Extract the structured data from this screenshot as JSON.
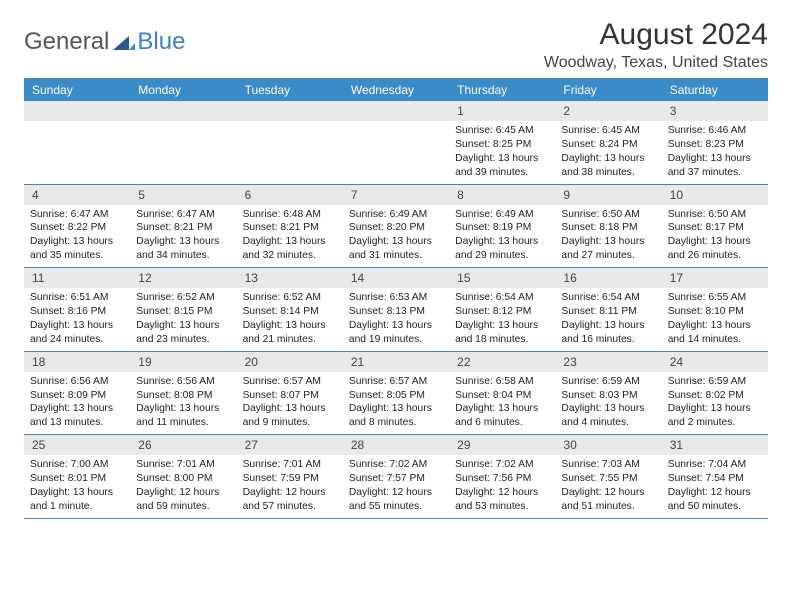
{
  "brand": {
    "part1": "General",
    "part2": "Blue"
  },
  "colors": {
    "header_bg": "#3b8bc9",
    "daynum_bg": "#e8e9ea",
    "border": "#5a7fa3",
    "logo_gray": "#555555",
    "logo_blue": "#3b7fc4"
  },
  "title": "August 2024",
  "location": "Woodway, Texas, United States",
  "weekdays": [
    "Sunday",
    "Monday",
    "Tuesday",
    "Wednesday",
    "Thursday",
    "Friday",
    "Saturday"
  ],
  "weeks": [
    [
      null,
      null,
      null,
      null,
      {
        "n": "1",
        "sunrise": "Sunrise: 6:45 AM",
        "sunset": "Sunset: 8:25 PM",
        "day1": "Daylight: 13 hours",
        "day2": "and 39 minutes."
      },
      {
        "n": "2",
        "sunrise": "Sunrise: 6:45 AM",
        "sunset": "Sunset: 8:24 PM",
        "day1": "Daylight: 13 hours",
        "day2": "and 38 minutes."
      },
      {
        "n": "3",
        "sunrise": "Sunrise: 6:46 AM",
        "sunset": "Sunset: 8:23 PM",
        "day1": "Daylight: 13 hours",
        "day2": "and 37 minutes."
      }
    ],
    [
      {
        "n": "4",
        "sunrise": "Sunrise: 6:47 AM",
        "sunset": "Sunset: 8:22 PM",
        "day1": "Daylight: 13 hours",
        "day2": "and 35 minutes."
      },
      {
        "n": "5",
        "sunrise": "Sunrise: 6:47 AM",
        "sunset": "Sunset: 8:21 PM",
        "day1": "Daylight: 13 hours",
        "day2": "and 34 minutes."
      },
      {
        "n": "6",
        "sunrise": "Sunrise: 6:48 AM",
        "sunset": "Sunset: 8:21 PM",
        "day1": "Daylight: 13 hours",
        "day2": "and 32 minutes."
      },
      {
        "n": "7",
        "sunrise": "Sunrise: 6:49 AM",
        "sunset": "Sunset: 8:20 PM",
        "day1": "Daylight: 13 hours",
        "day2": "and 31 minutes."
      },
      {
        "n": "8",
        "sunrise": "Sunrise: 6:49 AM",
        "sunset": "Sunset: 8:19 PM",
        "day1": "Daylight: 13 hours",
        "day2": "and 29 minutes."
      },
      {
        "n": "9",
        "sunrise": "Sunrise: 6:50 AM",
        "sunset": "Sunset: 8:18 PM",
        "day1": "Daylight: 13 hours",
        "day2": "and 27 minutes."
      },
      {
        "n": "10",
        "sunrise": "Sunrise: 6:50 AM",
        "sunset": "Sunset: 8:17 PM",
        "day1": "Daylight: 13 hours",
        "day2": "and 26 minutes."
      }
    ],
    [
      {
        "n": "11",
        "sunrise": "Sunrise: 6:51 AM",
        "sunset": "Sunset: 8:16 PM",
        "day1": "Daylight: 13 hours",
        "day2": "and 24 minutes."
      },
      {
        "n": "12",
        "sunrise": "Sunrise: 6:52 AM",
        "sunset": "Sunset: 8:15 PM",
        "day1": "Daylight: 13 hours",
        "day2": "and 23 minutes."
      },
      {
        "n": "13",
        "sunrise": "Sunrise: 6:52 AM",
        "sunset": "Sunset: 8:14 PM",
        "day1": "Daylight: 13 hours",
        "day2": "and 21 minutes."
      },
      {
        "n": "14",
        "sunrise": "Sunrise: 6:53 AM",
        "sunset": "Sunset: 8:13 PM",
        "day1": "Daylight: 13 hours",
        "day2": "and 19 minutes."
      },
      {
        "n": "15",
        "sunrise": "Sunrise: 6:54 AM",
        "sunset": "Sunset: 8:12 PM",
        "day1": "Daylight: 13 hours",
        "day2": "and 18 minutes."
      },
      {
        "n": "16",
        "sunrise": "Sunrise: 6:54 AM",
        "sunset": "Sunset: 8:11 PM",
        "day1": "Daylight: 13 hours",
        "day2": "and 16 minutes."
      },
      {
        "n": "17",
        "sunrise": "Sunrise: 6:55 AM",
        "sunset": "Sunset: 8:10 PM",
        "day1": "Daylight: 13 hours",
        "day2": "and 14 minutes."
      }
    ],
    [
      {
        "n": "18",
        "sunrise": "Sunrise: 6:56 AM",
        "sunset": "Sunset: 8:09 PM",
        "day1": "Daylight: 13 hours",
        "day2": "and 13 minutes."
      },
      {
        "n": "19",
        "sunrise": "Sunrise: 6:56 AM",
        "sunset": "Sunset: 8:08 PM",
        "day1": "Daylight: 13 hours",
        "day2": "and 11 minutes."
      },
      {
        "n": "20",
        "sunrise": "Sunrise: 6:57 AM",
        "sunset": "Sunset: 8:07 PM",
        "day1": "Daylight: 13 hours",
        "day2": "and 9 minutes."
      },
      {
        "n": "21",
        "sunrise": "Sunrise: 6:57 AM",
        "sunset": "Sunset: 8:05 PM",
        "day1": "Daylight: 13 hours",
        "day2": "and 8 minutes."
      },
      {
        "n": "22",
        "sunrise": "Sunrise: 6:58 AM",
        "sunset": "Sunset: 8:04 PM",
        "day1": "Daylight: 13 hours",
        "day2": "and 6 minutes."
      },
      {
        "n": "23",
        "sunrise": "Sunrise: 6:59 AM",
        "sunset": "Sunset: 8:03 PM",
        "day1": "Daylight: 13 hours",
        "day2": "and 4 minutes."
      },
      {
        "n": "24",
        "sunrise": "Sunrise: 6:59 AM",
        "sunset": "Sunset: 8:02 PM",
        "day1": "Daylight: 13 hours",
        "day2": "and 2 minutes."
      }
    ],
    [
      {
        "n": "25",
        "sunrise": "Sunrise: 7:00 AM",
        "sunset": "Sunset: 8:01 PM",
        "day1": "Daylight: 13 hours",
        "day2": "and 1 minute."
      },
      {
        "n": "26",
        "sunrise": "Sunrise: 7:01 AM",
        "sunset": "Sunset: 8:00 PM",
        "day1": "Daylight: 12 hours",
        "day2": "and 59 minutes."
      },
      {
        "n": "27",
        "sunrise": "Sunrise: 7:01 AM",
        "sunset": "Sunset: 7:59 PM",
        "day1": "Daylight: 12 hours",
        "day2": "and 57 minutes."
      },
      {
        "n": "28",
        "sunrise": "Sunrise: 7:02 AM",
        "sunset": "Sunset: 7:57 PM",
        "day1": "Daylight: 12 hours",
        "day2": "and 55 minutes."
      },
      {
        "n": "29",
        "sunrise": "Sunrise: 7:02 AM",
        "sunset": "Sunset: 7:56 PM",
        "day1": "Daylight: 12 hours",
        "day2": "and 53 minutes."
      },
      {
        "n": "30",
        "sunrise": "Sunrise: 7:03 AM",
        "sunset": "Sunset: 7:55 PM",
        "day1": "Daylight: 12 hours",
        "day2": "and 51 minutes."
      },
      {
        "n": "31",
        "sunrise": "Sunrise: 7:04 AM",
        "sunset": "Sunset: 7:54 PM",
        "day1": "Daylight: 12 hours",
        "day2": "and 50 minutes."
      }
    ]
  ]
}
